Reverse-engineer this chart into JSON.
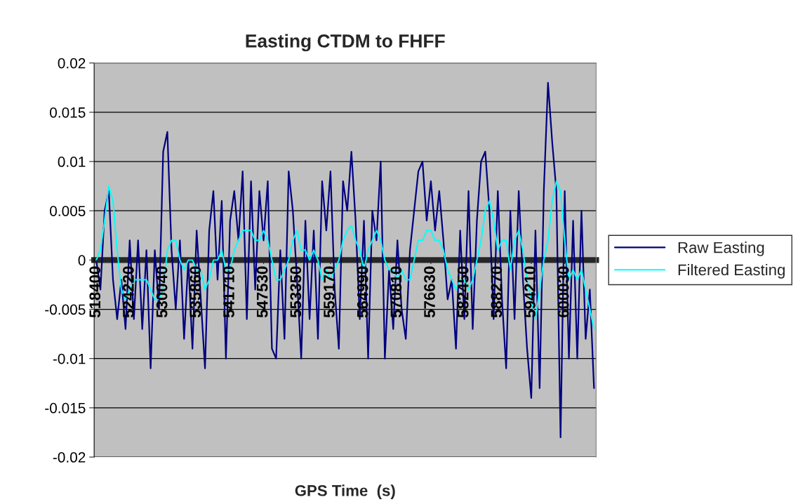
{
  "chart_data": {
    "type": "line",
    "title": "Easting CTDM to FHFF",
    "xlabel": "GPS Time  (s)",
    "categories": [
      "518400",
      null,
      null,
      null,
      null,
      null,
      null,
      null,
      "524220",
      null,
      null,
      null,
      null,
      null,
      null,
      null,
      "530040",
      null,
      null,
      null,
      null,
      null,
      null,
      null,
      "535860",
      null,
      null,
      null,
      null,
      null,
      null,
      null,
      "541710",
      null,
      null,
      null,
      null,
      null,
      null,
      null,
      "547530",
      null,
      null,
      null,
      null,
      null,
      null,
      null,
      "553350",
      null,
      null,
      null,
      null,
      null,
      null,
      null,
      "559170",
      null,
      null,
      null,
      null,
      null,
      null,
      null,
      "564990",
      null,
      null,
      null,
      null,
      null,
      null,
      null,
      "570810",
      null,
      null,
      null,
      null,
      null,
      null,
      null,
      "576630",
      null,
      null,
      null,
      null,
      null,
      null,
      null,
      "582450",
      null,
      null,
      null,
      null,
      null,
      null,
      null,
      "588270",
      null,
      null,
      null,
      null,
      null,
      null,
      null,
      "594210",
      null,
      null,
      null,
      null,
      null,
      null,
      null,
      "600030",
      null,
      null,
      null,
      null,
      null,
      null,
      null
    ],
    "series": [
      {
        "name": "Raw Easting",
        "color": "#000080",
        "values": [
          0.0,
          -0.003,
          0.005,
          0.007,
          -0.002,
          -0.006,
          -0.002,
          -0.007,
          0.002,
          -0.006,
          0.002,
          -0.007,
          0.001,
          -0.011,
          0.001,
          -0.005,
          0.011,
          0.013,
          0.001,
          -0.005,
          0.002,
          -0.008,
          0.0,
          -0.009,
          0.003,
          -0.004,
          -0.011,
          0.003,
          0.007,
          -0.002,
          0.006,
          -0.01,
          0.004,
          0.007,
          0.002,
          0.009,
          -0.006,
          0.008,
          -0.003,
          0.007,
          0.002,
          0.008,
          -0.009,
          -0.01,
          0.001,
          -0.008,
          0.009,
          0.005,
          -0.002,
          -0.01,
          0.004,
          -0.006,
          0.003,
          -0.008,
          0.008,
          0.003,
          0.009,
          -0.003,
          -0.009,
          0.008,
          0.005,
          0.011,
          0.004,
          -0.006,
          0.004,
          -0.01,
          0.005,
          0.002,
          0.01,
          -0.01,
          -0.001,
          -0.007,
          0.002,
          -0.005,
          -0.008,
          0.001,
          0.005,
          0.009,
          0.01,
          0.004,
          0.008,
          0.003,
          0.007,
          0.002,
          -0.004,
          -0.002,
          -0.009,
          0.003,
          -0.006,
          0.007,
          -0.007,
          0.004,
          0.01,
          0.011,
          0.005,
          -0.006,
          0.007,
          -0.004,
          -0.011,
          0.005,
          -0.006,
          0.007,
          -0.002,
          -0.009,
          -0.014,
          0.003,
          -0.013,
          0.007,
          0.018,
          0.012,
          0.007,
          -0.018,
          0.007,
          -0.01,
          0.004,
          -0.01,
          0.005,
          -0.008,
          -0.003,
          -0.013
        ]
      },
      {
        "name": "Filtered Easting",
        "color": "#00ffff",
        "values": [
          0.0,
          0.001,
          0.004,
          0.0075,
          0.006,
          0.001,
          -0.003,
          -0.004,
          -0.003,
          -0.002,
          -0.002,
          -0.002,
          -0.002,
          -0.003,
          -0.004,
          -0.004,
          -0.003,
          0.001,
          0.002,
          0.002,
          0.0,
          -0.001,
          0.0,
          0.0,
          -0.001,
          -0.001,
          -0.003,
          -0.002,
          0.0,
          0.0,
          0.001,
          -0.001,
          -0.001,
          0.001,
          0.002,
          0.003,
          0.003,
          0.003,
          0.002,
          0.002,
          0.003,
          0.002,
          0.0,
          -0.002,
          -0.002,
          -0.001,
          0.0,
          0.002,
          0.003,
          0.001,
          0.001,
          0.0,
          0.001,
          0.0,
          -0.002,
          -0.001,
          -0.002,
          -0.001,
          0.0,
          0.002,
          0.003,
          0.0035,
          0.002,
          0.001,
          -0.001,
          0.001,
          0.002,
          0.003,
          0.002,
          0.0,
          -0.001,
          -0.001,
          -0.002,
          -0.001,
          -0.002,
          -0.002,
          0.0,
          0.002,
          0.002,
          0.003,
          0.003,
          0.002,
          0.002,
          0.001,
          -0.001,
          -0.002,
          -0.003,
          -0.002,
          -0.002,
          -0.003,
          -0.002,
          0.0,
          0.002,
          0.005,
          0.006,
          0.004,
          0.001,
          0.002,
          0.002,
          -0.001,
          0.002,
          0.003,
          0.001,
          -0.002,
          -0.004,
          -0.006,
          -0.003,
          0.0,
          0.002,
          0.006,
          0.008,
          0.007,
          0.002,
          -0.002,
          -0.001,
          -0.002,
          -0.001,
          -0.003,
          -0.005,
          -0.007
        ]
      }
    ],
    "ylim": [
      -0.02,
      0.02
    ],
    "yticks": [
      -0.02,
      -0.015,
      -0.01,
      -0.005,
      0,
      0.005,
      0.01,
      0.015,
      0.02
    ],
    "grid": "y",
    "legend": "right",
    "line_style": "solid",
    "marker": "none"
  }
}
